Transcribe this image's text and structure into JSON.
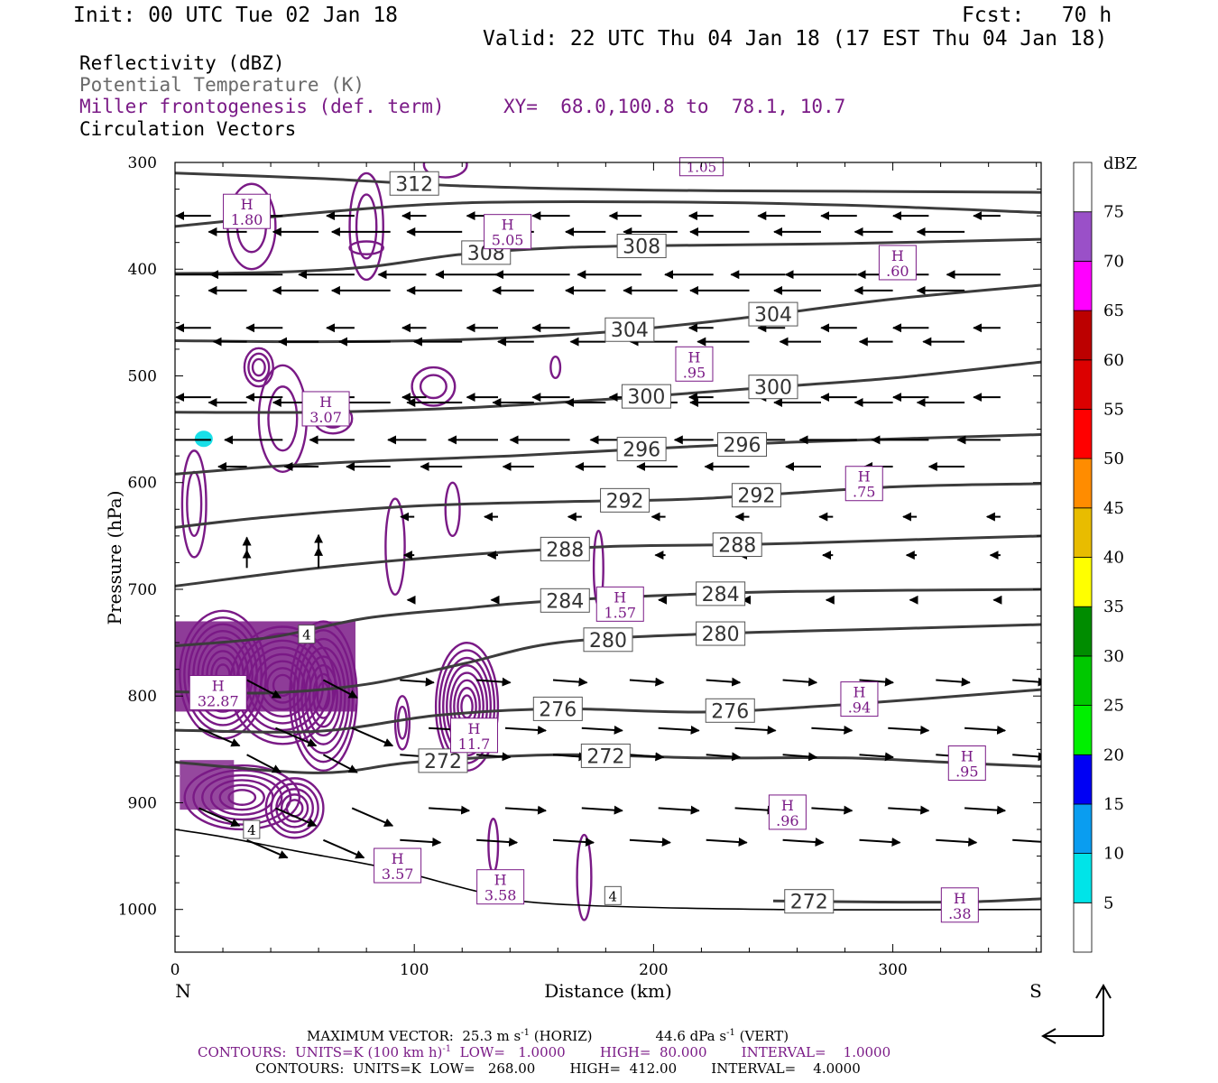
{
  "header": {
    "init": "Init: 00 UTC Tue 02 Jan 18",
    "fcst": "Fcst:   70 h",
    "valid": "Valid: 22 UTC Thu 04 Jan 18 (17 EST Thu 04 Jan 18)"
  },
  "legend": {
    "reflectivity": "Reflectivity (dBZ)",
    "theta": "Potential Temperature (K)",
    "frontogenesis": "Miller frontogenesis (def. term)",
    "xy": "XY=  68.0,100.8 to  78.1, 10.7",
    "vectors": "Circulation Vectors"
  },
  "colors": {
    "theta": "#3c3c3c",
    "frontogenesis": "#7a1a86",
    "vectors": "#000000",
    "reflectivity_patch": "#19dfe8"
  },
  "footer": {
    "max_vector": "MAXIMUM VECTOR:  25.3 m s",
    "max_vector_unit_sup": "-1",
    "max_vector_horiz": " (HORIZ)",
    "max_vector_vert": "44.6 dPa s",
    "max_vector_vert_sup": "-1",
    "max_vector_vert_tail": " (VERT)",
    "contours1_a": "CONTOURS:  UNITS=K (100 km h)",
    "contours1_sup": "-1",
    "contours1_b": "  LOW=   1.0000        HIGH=  80.000        INTERVAL=    1.0000",
    "contours2": "CONTOURS:  UNITS=K  LOW=   268.00        HIGH=  412.00        INTERVAL=    4.0000"
  },
  "chart_data": {
    "type": "cross-section",
    "xlabel": "Distance (km)",
    "ylabel": "Pressure (hPa)",
    "xlim": [
      0,
      362
    ],
    "ylim": [
      1040,
      300
    ],
    "x_ticks": [
      0,
      100,
      200,
      300
    ],
    "y_ticks": [
      300,
      400,
      500,
      600,
      700,
      800,
      900,
      1000
    ],
    "left_end_label": "N",
    "right_end_label": "S",
    "colorbar": {
      "unit": "dBZ",
      "levels": [
        5,
        10,
        15,
        20,
        25,
        30,
        35,
        40,
        45,
        50,
        55,
        60,
        65,
        70,
        75
      ],
      "colors": [
        "#ffffff",
        "#00e4e8",
        "#0a9df0",
        "#0000f4",
        "#00f000",
        "#00c800",
        "#008c00",
        "#ffff00",
        "#e8bc00",
        "#ff8c00",
        "#ff0000",
        "#dc0000",
        "#bc0000",
        "#ff00ff",
        "#9a50c8",
        "#ffffff"
      ]
    },
    "theta_contours": [
      {
        "label": "312",
        "points": [
          [
            0,
            310
          ],
          [
            60,
            315
          ],
          [
            120,
            322
          ],
          [
            200,
            326
          ],
          [
            280,
            327
          ],
          [
            362,
            328
          ]
        ]
      },
      {
        "label": "312",
        "points": [
          [
            0,
            360
          ],
          [
            60,
            347
          ],
          [
            120,
            338
          ],
          [
            200,
            337
          ],
          [
            280,
            340
          ],
          [
            362,
            347
          ]
        ]
      },
      {
        "label": "308",
        "points": [
          [
            0,
            404
          ],
          [
            40,
            403
          ],
          [
            80,
            398
          ],
          [
            120,
            386
          ],
          [
            160,
            380
          ],
          [
            200,
            378
          ],
          [
            280,
            376
          ],
          [
            362,
            372
          ]
        ]
      },
      {
        "label": "304",
        "points": [
          [
            0,
            467
          ],
          [
            60,
            468
          ],
          [
            120,
            466
          ],
          [
            180,
            459
          ],
          [
            240,
            445
          ],
          [
            300,
            428
          ],
          [
            362,
            415
          ]
        ]
      },
      {
        "label": "300",
        "points": [
          [
            0,
            534
          ],
          [
            60,
            534
          ],
          [
            120,
            530
          ],
          [
            180,
            522
          ],
          [
            240,
            512
          ],
          [
            300,
            502
          ],
          [
            362,
            487
          ]
        ]
      },
      {
        "label": "296",
        "points": [
          [
            0,
            592
          ],
          [
            40,
            585
          ],
          [
            80,
            580
          ],
          [
            140,
            575
          ],
          [
            200,
            568
          ],
          [
            260,
            562
          ],
          [
            362,
            555
          ]
        ]
      },
      {
        "label": "292",
        "points": [
          [
            0,
            642
          ],
          [
            40,
            632
          ],
          [
            100,
            622
          ],
          [
            160,
            618
          ],
          [
            220,
            615
          ],
          [
            300,
            604
          ],
          [
            362,
            601
          ]
        ]
      },
      {
        "label": "288",
        "points": [
          [
            0,
            697
          ],
          [
            60,
            680
          ],
          [
            120,
            668
          ],
          [
            180,
            660
          ],
          [
            240,
            658
          ],
          [
            300,
            654
          ],
          [
            362,
            650
          ]
        ]
      },
      {
        "label": "284",
        "points": [
          [
            0,
            753
          ],
          [
            40,
            745
          ],
          [
            80,
            727
          ],
          [
            120,
            718
          ],
          [
            150,
            712
          ],
          [
            200,
            706
          ],
          [
            260,
            702
          ],
          [
            362,
            700
          ]
        ]
      },
      {
        "label": "280",
        "points": [
          [
            0,
            796
          ],
          [
            40,
            797
          ],
          [
            80,
            789
          ],
          [
            120,
            770
          ],
          [
            160,
            750
          ],
          [
            220,
            742
          ],
          [
            300,
            737
          ],
          [
            362,
            733
          ]
        ]
      },
      {
        "label": "276",
        "points": [
          [
            0,
            832
          ],
          [
            60,
            833
          ],
          [
            110,
            818
          ],
          [
            160,
            812
          ],
          [
            220,
            815
          ],
          [
            280,
            808
          ],
          [
            362,
            794
          ]
        ]
      },
      {
        "label": "272",
        "points": [
          [
            0,
            862
          ],
          [
            60,
            872
          ],
          [
            100,
            862
          ],
          [
            160,
            855
          ],
          [
            220,
            858
          ],
          [
            280,
            858
          ],
          [
            330,
            863
          ],
          [
            362,
            866
          ]
        ]
      },
      {
        "label": "272",
        "points": [
          [
            250,
            992
          ],
          [
            290,
            993
          ],
          [
            330,
            993
          ],
          [
            362,
            990
          ]
        ]
      }
    ],
    "frontogenesis_maxima": [
      {
        "label": "H",
        "value": "1.80",
        "x": 30,
        "p": 345
      },
      {
        "label": "H",
        "value": "5.05",
        "x": 139,
        "p": 364
      },
      {
        "label": "H",
        "value": ".60",
        "x": 302,
        "p": 393
      },
      {
        "label": "H",
        "value": ".95",
        "x": 217,
        "p": 488
      },
      {
        "label": "H",
        "value": "3.07",
        "x": 63,
        "p": 530
      },
      {
        "label": "H",
        "value": ".75",
        "x": 288,
        "p": 600
      },
      {
        "label": "H",
        "value": "1.57",
        "x": 186,
        "p": 713
      },
      {
        "label": "H",
        "value": "32.87",
        "x": 18,
        "p": 796
      },
      {
        "label": "H",
        "value": ".94",
        "x": 286,
        "p": 802
      },
      {
        "label": "H",
        "value": "11.7",
        "x": 125,
        "p": 836
      },
      {
        "label": "H",
        "value": ".95",
        "x": 331,
        "p": 862
      },
      {
        "label": "H",
        "value": ".96",
        "x": 256,
        "p": 908
      },
      {
        "label": "H",
        "value": "3.57",
        "x": 93,
        "p": 958
      },
      {
        "label": "H",
        "value": "3.58",
        "x": 136,
        "p": 978
      },
      {
        "label": "H",
        "value": ".38",
        "x": 328,
        "p": 995
      }
    ],
    "small_labels": [
      {
        "text": "4",
        "x": 55,
        "p": 742
      },
      {
        "text": "4",
        "x": 32,
        "p": 925
      },
      {
        "text": "4",
        "x": 183,
        "p": 987
      },
      {
        "text": "1.05",
        "x": 220,
        "p": 304
      }
    ]
  }
}
